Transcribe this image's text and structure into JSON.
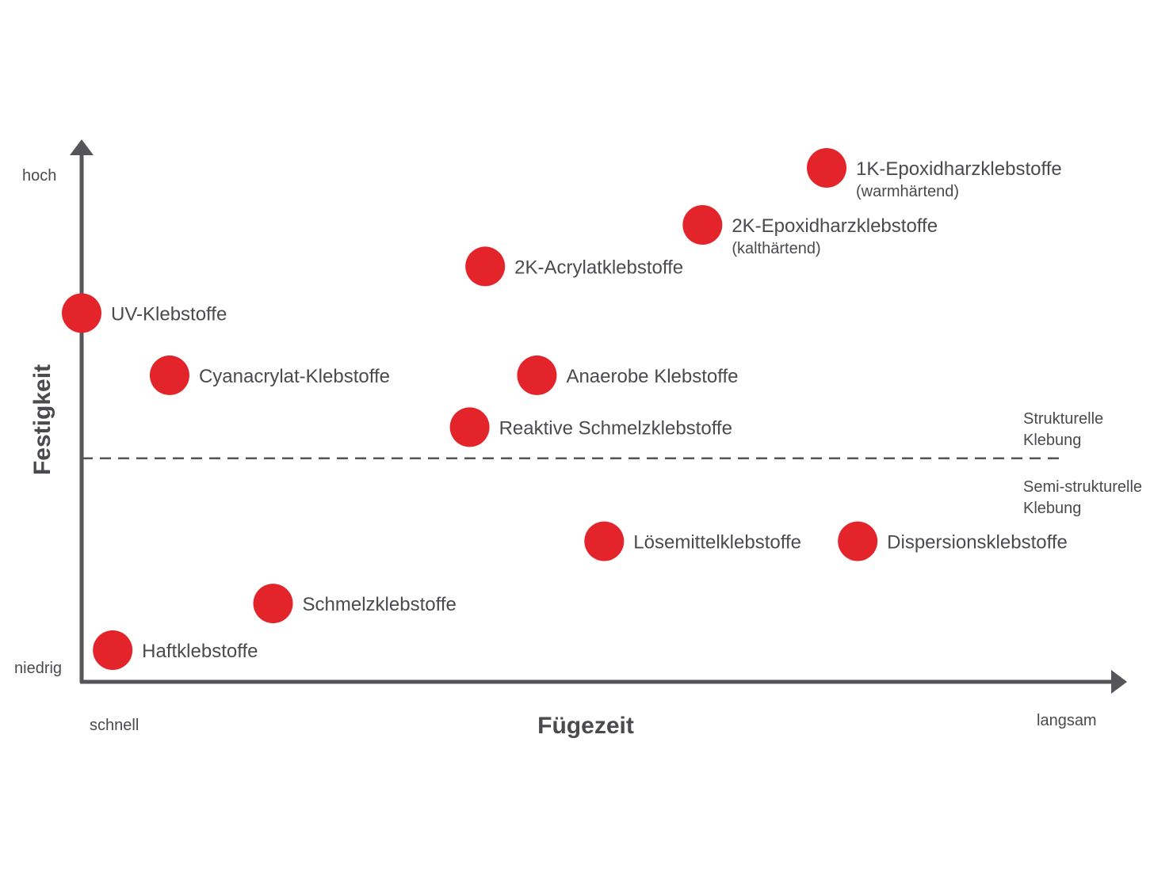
{
  "chart_data": {
    "type": "scatter",
    "xlabel": "Fügezeit",
    "ylabel": "Festigkeit",
    "x_min_label": "schnell",
    "x_max_label": "langsam",
    "y_min_label": "niedrig",
    "y_max_label": "hoch",
    "xlim": [
      0,
      100
    ],
    "ylim": [
      0,
      100
    ],
    "threshold": 43,
    "regions": {
      "above": [
        "Strukturelle",
        "Klebung"
      ],
      "below": [
        "Semi-strukturelle",
        "Klebung"
      ]
    },
    "marker_color": "#e3242b",
    "axis_color": "#55555a",
    "points": [
      {
        "name": "1K-Epoxidharzklebstoffe",
        "sub": "(warmhärtend)",
        "x": 72,
        "y": 99
      },
      {
        "name": "2K-Epoxidharzklebstoffe",
        "sub": "(kalthärtend)",
        "x": 60,
        "y": 88
      },
      {
        "name": "2K-Acrylatklebstoffe",
        "sub": "",
        "x": 39,
        "y": 80
      },
      {
        "name": "UV-Klebstoffe",
        "sub": "",
        "x": 0,
        "y": 71
      },
      {
        "name": "Cyanacrylat-Klebstoffe",
        "sub": "",
        "x": 8.5,
        "y": 59
      },
      {
        "name": "Anaerobe Klebstoffe",
        "sub": "",
        "x": 44,
        "y": 59
      },
      {
        "name": "Reaktive Schmelzklebstoffe",
        "sub": "",
        "x": 37.5,
        "y": 49
      },
      {
        "name": "Lösemittelklebstoffe",
        "sub": "",
        "x": 50.5,
        "y": 27
      },
      {
        "name": "Dispersionsklebstoffe",
        "sub": "",
        "x": 75,
        "y": 27
      },
      {
        "name": "Schmelzklebstoffe",
        "sub": "",
        "x": 18.5,
        "y": 15
      },
      {
        "name": "Haftklebstoffe",
        "sub": "",
        "x": 3,
        "y": 6
      }
    ]
  }
}
